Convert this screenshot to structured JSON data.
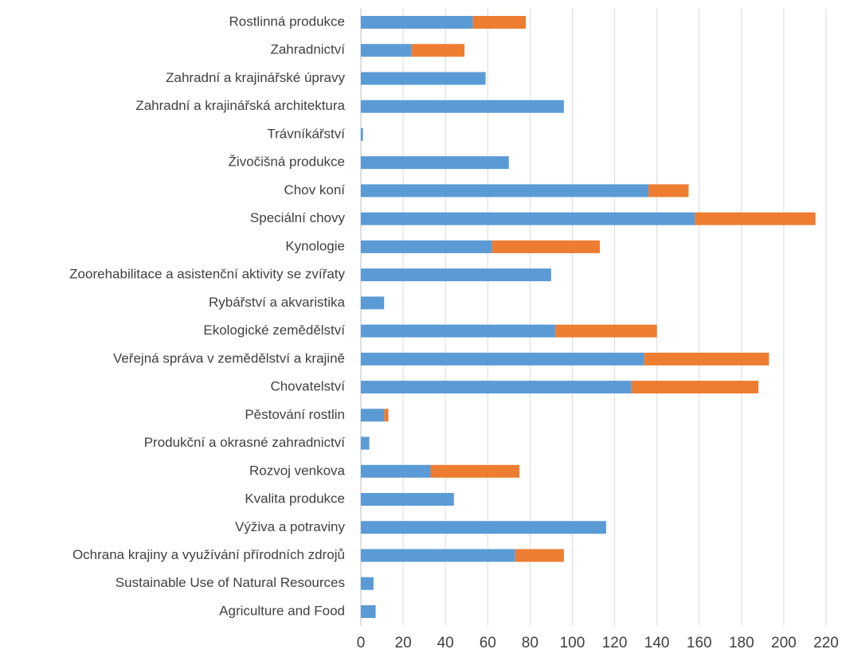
{
  "chart_data": {
    "type": "stacked-barh",
    "categories": [
      "Rostlinná produkce",
      "Zahradnictví",
      "Zahradní a krajinářské úpravy",
      "Zahradní a krajinářská architektura",
      "Trávníkářství",
      "Živočišná produkce",
      "Chov koní",
      "Speciální chovy",
      "Kynologie",
      "Zoorehabilitace a asistenční aktivity se zvířaty",
      "Rybářství a akvaristika",
      "Ekologické zemědělství",
      "Veřejná správa v zemědělství a krajině",
      "Chovatelství",
      "Pěstování rostlin",
      "Produkční a okrasné zahradnictví",
      "Rozvoj venkova",
      "Kvalita produkce",
      "Výživa a potraviny",
      "Ochrana krajiny a využívání přírodních zdrojů",
      "Sustainable Use of Natural Resources",
      "Agriculture and Food"
    ],
    "series": [
      {
        "color": "#5b9bd5",
        "values": [
          53,
          24,
          59,
          96,
          1,
          70,
          136,
          158,
          62,
          90,
          11,
          92,
          134,
          128,
          11,
          4,
          33,
          44,
          116,
          73,
          6,
          7
        ]
      },
      {
        "color": "#ed7d31",
        "values": [
          25,
          25,
          0,
          0,
          0,
          0,
          19,
          57,
          51,
          0,
          0,
          48,
          59,
          60,
          2,
          0,
          42,
          0,
          0,
          23,
          0,
          0
        ]
      }
    ],
    "xlim": [
      0,
      220
    ],
    "xticks": [
      0,
      20,
      40,
      60,
      80,
      100,
      120,
      140,
      160,
      180,
      200,
      220
    ],
    "grid": true
  }
}
